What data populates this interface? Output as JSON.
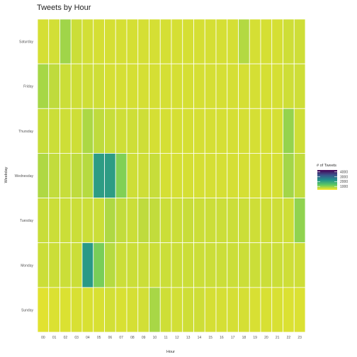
{
  "chart_data": {
    "type": "heatmap",
    "title": "Tweets by Hour",
    "xlabel": "Hour",
    "ylabel": "Weekday",
    "x": [
      "00",
      "01",
      "02",
      "03",
      "04",
      "05",
      "06",
      "07",
      "08",
      "09",
      "10",
      "11",
      "12",
      "13",
      "14",
      "15",
      "16",
      "17",
      "18",
      "19",
      "20",
      "21",
      "22",
      "23"
    ],
    "y": [
      "Saturday",
      "Friday",
      "Thursday",
      "Wednesday",
      "Tuesday",
      "Monday",
      "Sunday"
    ],
    "values": [
      [
        560,
        580,
        900,
        620,
        580,
        560,
        560,
        560,
        560,
        560,
        560,
        560,
        560,
        560,
        560,
        560,
        560,
        560,
        780,
        560,
        560,
        560,
        600,
        600
      ],
      [
        860,
        700,
        620,
        600,
        600,
        600,
        560,
        560,
        560,
        560,
        560,
        560,
        560,
        560,
        560,
        560,
        560,
        560,
        560,
        560,
        560,
        560,
        600,
        600
      ],
      [
        650,
        620,
        600,
        600,
        820,
        700,
        650,
        600,
        600,
        600,
        560,
        560,
        560,
        560,
        560,
        560,
        560,
        560,
        560,
        560,
        560,
        560,
        980,
        600
      ],
      [
        800,
        680,
        650,
        700,
        760,
        2150,
        2150,
        1100,
        600,
        600,
        650,
        560,
        560,
        560,
        560,
        560,
        560,
        560,
        560,
        560,
        560,
        560,
        880,
        680
      ],
      [
        640,
        620,
        620,
        620,
        620,
        620,
        800,
        680,
        620,
        700,
        680,
        620,
        620,
        640,
        620,
        620,
        620,
        620,
        620,
        600,
        600,
        600,
        600,
        1000
      ],
      [
        620,
        620,
        620,
        620,
        2200,
        1150,
        760,
        620,
        620,
        620,
        620,
        620,
        620,
        620,
        620,
        620,
        620,
        620,
        620,
        620,
        620,
        620,
        600,
        600
      ],
      [
        480,
        520,
        520,
        540,
        540,
        540,
        580,
        540,
        560,
        580,
        850,
        600,
        580,
        600,
        600,
        560,
        560,
        560,
        560,
        540,
        540,
        540,
        520,
        520
      ]
    ],
    "legend": {
      "title": "# of Tweets",
      "ticks": [
        4000,
        3000,
        2000,
        1000
      ],
      "min": 300,
      "max": 4400,
      "placement": "right"
    },
    "colorscale": "viridis",
    "grid": false
  }
}
